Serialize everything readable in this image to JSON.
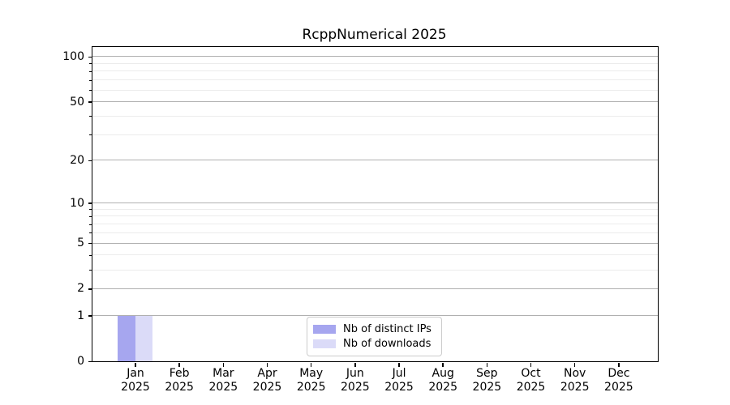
{
  "title": "RcppNumerical 2025",
  "legend": {
    "items": [
      {
        "label": "Nb of distinct IPs",
        "color": "#a6a6ef"
      },
      {
        "label": "Nb of downloads",
        "color": "#dbdbf8"
      }
    ]
  },
  "y_axis": {
    "major_ticks": [
      0,
      1,
      2,
      5,
      10,
      20,
      50,
      100
    ],
    "minor_ticks": [
      3,
      4,
      6,
      7,
      8,
      9,
      30,
      40,
      60,
      70,
      80,
      90
    ],
    "scale": "log1p",
    "max": 116
  },
  "x_axis": {
    "months": [
      "Jan",
      "Feb",
      "Mar",
      "Apr",
      "May",
      "Jun",
      "Jul",
      "Aug",
      "Sep",
      "Oct",
      "Nov",
      "Dec"
    ],
    "year": "2025"
  },
  "chart_data": {
    "type": "bar",
    "title": "RcppNumerical 2025",
    "categories": [
      "Jan 2025",
      "Feb 2025",
      "Mar 2025",
      "Apr 2025",
      "May 2025",
      "Jun 2025",
      "Jul 2025",
      "Aug 2025",
      "Sep 2025",
      "Oct 2025",
      "Nov 2025",
      "Dec 2025"
    ],
    "series": [
      {
        "name": "Nb of distinct IPs",
        "color": "#a6a6ef",
        "values": [
          1,
          0,
          0,
          0,
          0,
          0,
          0,
          0,
          0,
          0,
          0,
          0
        ]
      },
      {
        "name": "Nb of downloads",
        "color": "#dbdbf8",
        "values": [
          1,
          0,
          0,
          0,
          0,
          0,
          0,
          0,
          0,
          0,
          0,
          0
        ]
      }
    ],
    "yscale": "log1p",
    "ylim": [
      0,
      116
    ],
    "y_ticks": [
      0,
      1,
      2,
      5,
      10,
      20,
      50,
      100
    ],
    "grid": "horizontal, major and minor",
    "legend_position": "lower center",
    "xlabel": "",
    "ylabel": ""
  },
  "colors": {
    "distinct_ips": "#a6a6ef",
    "downloads": "#dbdbf8",
    "major_grid": "#b0b0b0",
    "minor_grid": "#ececec",
    "axis": "#000000",
    "background": "#ffffff"
  }
}
